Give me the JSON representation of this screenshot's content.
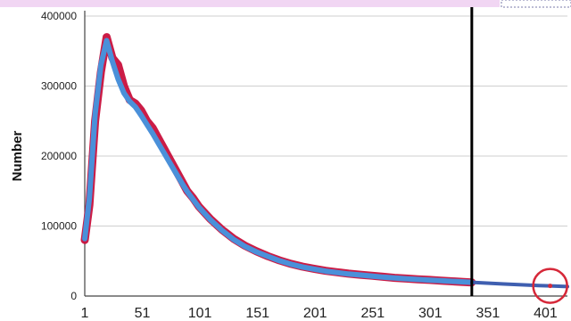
{
  "chart_data": {
    "type": "line",
    "xlabel": "",
    "ylabel": "Number",
    "xlim": [
      1,
      420
    ],
    "ylim": [
      0,
      400000
    ],
    "x_ticks": [
      1,
      51,
      101,
      151,
      201,
      251,
      301,
      351,
      401
    ],
    "y_ticks": [
      0,
      100000,
      200000,
      300000,
      400000
    ],
    "grid": true,
    "legend": "none",
    "vertical_line_x": 337,
    "highlight_circle_x": 405,
    "colors": {
      "observed": "#c8103c",
      "fitted": "#4a90d9",
      "projection": "#3f5fb0",
      "marker": "#d62839",
      "gridline": "#cfcfcf",
      "vline": "#000000"
    },
    "series": [
      {
        "role": "observed",
        "x": [
          1,
          5,
          10,
          15,
          20,
          25,
          30,
          35,
          40,
          45,
          50,
          55,
          60,
          65,
          70,
          75,
          80,
          85,
          90,
          95,
          100,
          110,
          120,
          130,
          140,
          150,
          160,
          170,
          180,
          190,
          200,
          210,
          220,
          230,
          240,
          250,
          260,
          270,
          280,
          290,
          300,
          310,
          320,
          330,
          337
        ],
        "values": [
          80000,
          130000,
          250000,
          320000,
          370000,
          340000,
          330000,
          300000,
          280000,
          275000,
          265000,
          250000,
          240000,
          225000,
          210000,
          195000,
          180000,
          165000,
          150000,
          140000,
          128000,
          110000,
          95000,
          82000,
          72000,
          64000,
          57000,
          51000,
          46000,
          42000,
          39000,
          36000,
          34000,
          32000,
          30500,
          29000,
          27500,
          26000,
          25000,
          24000,
          23000,
          22000,
          21000,
          20000,
          19500
        ]
      },
      {
        "role": "fitted",
        "x": [
          1,
          5,
          10,
          15,
          20,
          25,
          30,
          35,
          40,
          45,
          50,
          55,
          60,
          65,
          70,
          75,
          80,
          85,
          90,
          95,
          100,
          110,
          120,
          130,
          140,
          150,
          160,
          170,
          180,
          190,
          200,
          210,
          220,
          230,
          240,
          250,
          260,
          270,
          280,
          290,
          300,
          310,
          320,
          330,
          337
        ],
        "values": [
          82000,
          140000,
          260000,
          330000,
          365000,
          335000,
          310000,
          290000,
          278000,
          270000,
          258000,
          245000,
          232000,
          218000,
          204000,
          190000,
          176000,
          162000,
          149000,
          138000,
          127000,
          109000,
          94000,
          81000,
          71000,
          63000,
          56500,
          50500,
          45500,
          41500,
          38500,
          35500,
          33500,
          31500,
          30000,
          28500,
          27000,
          25800,
          24700,
          23700,
          22800,
          21900,
          21000,
          20200,
          19600
        ]
      },
      {
        "role": "projection",
        "x": [
          337,
          350,
          365,
          380,
          395,
          405,
          420
        ],
        "values": [
          19600,
          18500,
          17200,
          16000,
          15000,
          14500,
          13500
        ]
      }
    ]
  }
}
